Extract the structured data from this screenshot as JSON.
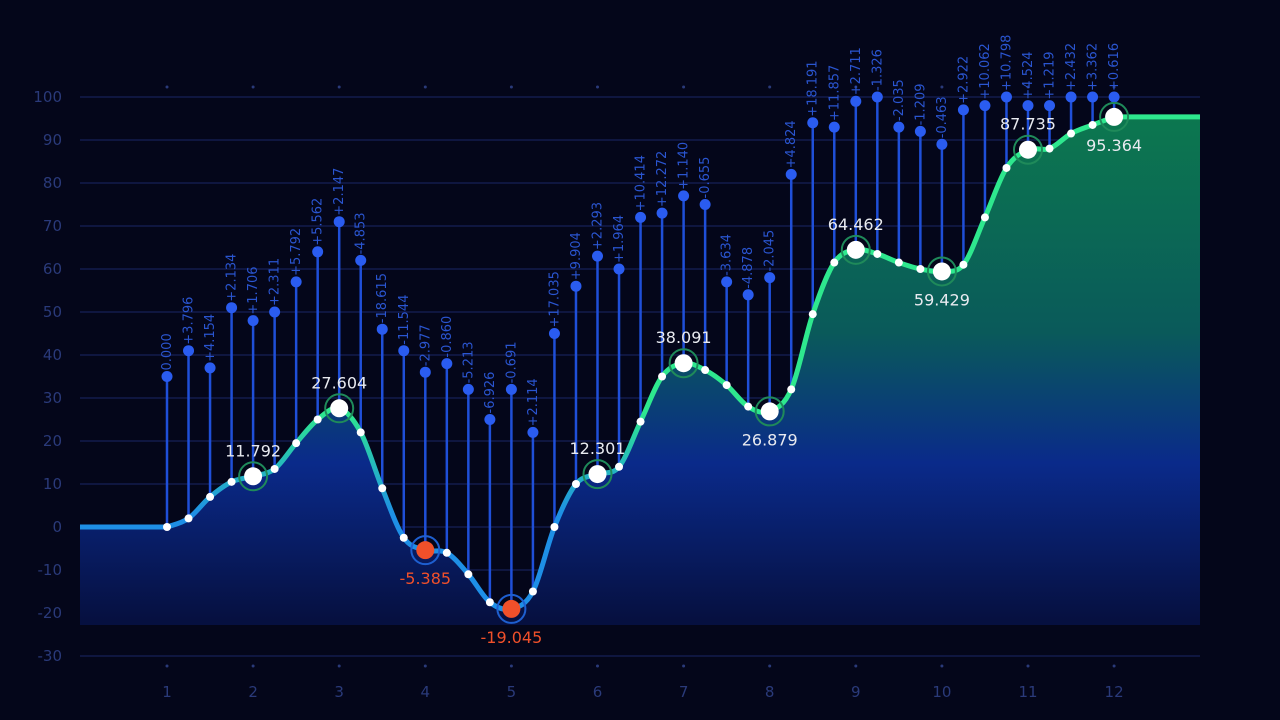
{
  "chart_data": {
    "type": "line",
    "xlim": [
      0,
      13
    ],
    "ylim": [
      -30,
      100
    ],
    "grid": true,
    "x_ticks": [
      "1",
      "2",
      "3",
      "4",
      "5",
      "6",
      "7",
      "8",
      "9",
      "10",
      "11",
      "12"
    ],
    "y_ticks": [
      "100",
      "90",
      "80",
      "70",
      "60",
      "50",
      "40",
      "30",
      "20",
      "10",
      "0",
      "-10",
      "-20",
      "-30"
    ],
    "curve": {
      "x": [
        1,
        1.25,
        1.5,
        1.75,
        2,
        2.25,
        2.5,
        2.75,
        3,
        3.25,
        3.5,
        3.75,
        4,
        4.25,
        4.5,
        4.75,
        5,
        5.25,
        5.5,
        5.75,
        6,
        6.25,
        6.5,
        6.75,
        7,
        7.25,
        7.5,
        7.75,
        8,
        8.25,
        8.5,
        8.75,
        9,
        9.25,
        9.5,
        9.75,
        10,
        10.25,
        10.5,
        10.75,
        11,
        11.25,
        11.5,
        11.75,
        12
      ],
      "y": [
        0,
        2,
        7,
        10.5,
        11.792,
        13.5,
        19.5,
        25,
        27.604,
        22,
        9,
        -2.5,
        -5.385,
        -6,
        -11,
        -17.5,
        -19.045,
        -15,
        0,
        10,
        12.301,
        14,
        24.5,
        35,
        38.091,
        36.5,
        33,
        28,
        26.879,
        32,
        49.5,
        61.5,
        64.462,
        63.5,
        61.5,
        60,
        59.429,
        61,
        72,
        83.5,
        87.735,
        88,
        91.5,
        93.5,
        95.364
      ]
    },
    "key_points": [
      {
        "x": 2,
        "y": 11.792,
        "label": "11.792",
        "pos": "above"
      },
      {
        "x": 3,
        "y": 27.604,
        "label": "27.604",
        "pos": "above"
      },
      {
        "x": 4,
        "y": -5.385,
        "label": "-5.385",
        "pos": "below",
        "negative": true
      },
      {
        "x": 5,
        "y": -19.045,
        "label": "-19.045",
        "pos": "below",
        "negative": true
      },
      {
        "x": 6,
        "y": 12.301,
        "label": "12.301",
        "pos": "above"
      },
      {
        "x": 7,
        "y": 38.091,
        "label": "38.091",
        "pos": "above"
      },
      {
        "x": 8,
        "y": 26.879,
        "label": "26.879",
        "pos": "below"
      },
      {
        "x": 9,
        "y": 64.462,
        "label": "64.462",
        "pos": "above"
      },
      {
        "x": 10,
        "y": 59.429,
        "label": "59.429",
        "pos": "below"
      },
      {
        "x": 11,
        "y": 87.735,
        "label": "87.735",
        "pos": "above"
      },
      {
        "x": 12,
        "y": 95.364,
        "label": "95.364",
        "pos": "below"
      }
    ],
    "stems": {
      "top": [
        35,
        41,
        37,
        51,
        48,
        50,
        57,
        64,
        71,
        62,
        46,
        41,
        36,
        38,
        32,
        25,
        32,
        22,
        45,
        56,
        63,
        60,
        72,
        73,
        77,
        75,
        57,
        54,
        58,
        82,
        94,
        93,
        99,
        100,
        93,
        92,
        89,
        97,
        98,
        100,
        98,
        98,
        100,
        100,
        100
      ],
      "labels": [
        "0.000",
        "+3.796",
        "+4.154",
        "+2.134",
        "+1.706",
        "+2.311",
        "+5.792",
        "+5.562",
        "+2.147",
        "-4.853",
        "-18.615",
        "-11.544",
        "-2.977",
        "-0.860",
        "-5.213",
        "-6.926",
        "-0.691",
        "+2.114",
        "+17.035",
        "+9.904",
        "+2.293",
        "+1.964",
        "+10.414",
        "+12.272",
        "+1.140",
        "-0.655",
        "-3.634",
        "-4.878",
        "-2.045",
        "+4.824",
        "+18.191",
        "+11.857",
        "+2.711",
        "-1.326",
        "-2.035",
        "-1.209",
        "-0.463",
        "+2.922",
        "+10.062",
        "+10.798",
        "+4.524",
        "+1.219",
        "+2.432",
        "+3.362",
        "+0.616"
      ]
    },
    "colors": {
      "background": "#04061a",
      "line_high": "#2ee88e",
      "line_low": "#1e8fe6",
      "stem": "#1f4fd8",
      "negative": "#f0502a",
      "area_top": "#0c7a4e",
      "area_bottom": "#0a2a8a"
    }
  }
}
